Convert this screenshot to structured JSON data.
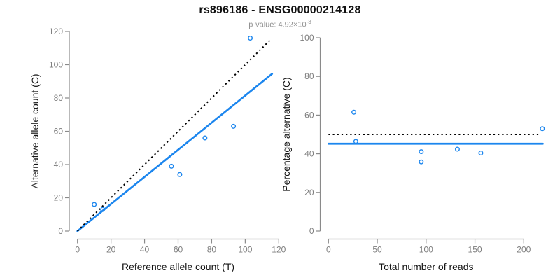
{
  "header": {
    "title": "rs896186 - ENSG00000214128",
    "subtitle_prefix": "p-value: 4.92×10",
    "subtitle_exponent": "-3"
  },
  "colors": {
    "accent_blue": "#1C86EE",
    "dotted_black": "#000000",
    "axis_gray": "#8a8a8a",
    "tick_text_gray": "#7e7e7e",
    "title_text": "#111111",
    "subtitle_gray": "#919191"
  },
  "chart_data": [
    {
      "type": "scatter",
      "panel": "left",
      "xlabel": "Reference allele count (T)",
      "ylabel": "Alternative allele count (C)",
      "xlim": [
        0,
        120
      ],
      "ylim": [
        0,
        120
      ],
      "xticks": [
        0,
        20,
        40,
        60,
        80,
        100,
        120
      ],
      "yticks": [
        0,
        20,
        40,
        60,
        80,
        100,
        120
      ],
      "grid": false,
      "points": [
        [
          10,
          16
        ],
        [
          15,
          13
        ],
        [
          56,
          39
        ],
        [
          61,
          34
        ],
        [
          76,
          56
        ],
        [
          93,
          63
        ],
        [
          103,
          116
        ]
      ],
      "lines": [
        {
          "name": "fit",
          "style": "solid",
          "color": "#1C86EE",
          "from": [
            0,
            0
          ],
          "to": [
            116,
            94.5
          ]
        },
        {
          "name": "identity",
          "style": "dotted",
          "color": "#000000",
          "from": [
            0,
            0
          ],
          "to": [
            115.5,
            115.5
          ]
        }
      ]
    },
    {
      "type": "scatter",
      "panel": "right",
      "xlabel": "Total number of reads",
      "ylabel": "Percentage alternative (C)",
      "xlim": [
        0,
        227
      ],
      "ylim": [
        0,
        100
      ],
      "xticks": [
        0,
        50,
        100,
        150,
        200
      ],
      "yticks": [
        0,
        20,
        40,
        60,
        80,
        100
      ],
      "grid": false,
      "points": [
        [
          26,
          61.5
        ],
        [
          28,
          46.4
        ],
        [
          95,
          41.1
        ],
        [
          95,
          35.8
        ],
        [
          132,
          42.4
        ],
        [
          156,
          40.4
        ],
        [
          219,
          53
        ]
      ],
      "lines": [
        {
          "name": "mean",
          "style": "solid",
          "color": "#1C86EE",
          "from": [
            0,
            45.2
          ],
          "to": [
            219.5,
            45.2
          ]
        },
        {
          "name": "expected",
          "style": "dotted",
          "color": "#000000",
          "from": [
            0,
            50
          ],
          "to": [
            215,
            50
          ]
        }
      ]
    }
  ]
}
